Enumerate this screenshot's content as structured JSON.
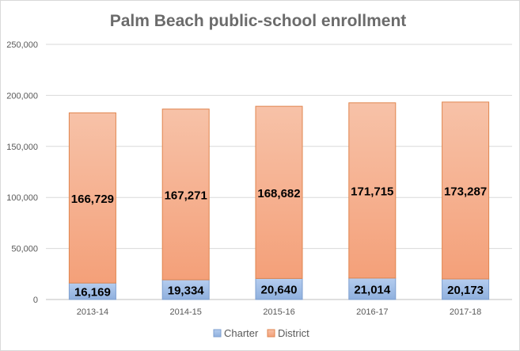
{
  "chart_data": {
    "type": "bar",
    "stacked": true,
    "title": "Palm Beach public-school enrollment",
    "xlabel": "",
    "ylabel": "",
    "categories": [
      "2013-14",
      "2014-15",
      "2015-16",
      "2016-17",
      "2017-18"
    ],
    "series": [
      {
        "name": "Charter",
        "values": [
          16169,
          19334,
          20640,
          21014,
          20173
        ],
        "labels": [
          "16,169",
          "19,334",
          "20,640",
          "21,014",
          "20,173"
        ],
        "color": "#9ab9e3"
      },
      {
        "name": "District",
        "values": [
          166729,
          167271,
          168682,
          171715,
          173287
        ],
        "labels": [
          "166,729",
          "167,271",
          "168,682",
          "171,715",
          "173,287"
        ],
        "color": "#f6a883"
      }
    ],
    "ylim": [
      0,
      250000
    ],
    "yticks": [
      0,
      50000,
      100000,
      150000,
      200000,
      250000
    ],
    "ytick_labels": [
      "0",
      "50,000",
      "100,000",
      "150,000",
      "200,000",
      "250,000"
    ],
    "grid": true,
    "legend_position": "bottom"
  }
}
